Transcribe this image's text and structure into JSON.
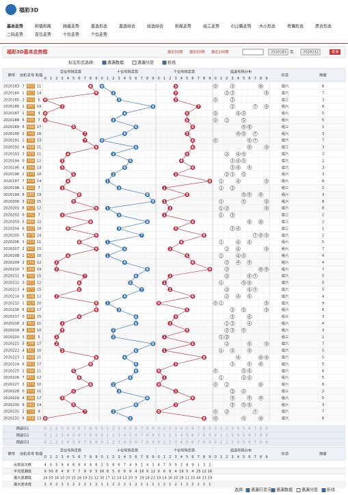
{
  "header": {
    "logo": "福彩3D",
    "nav": [
      "基本走势",
      "和值和尾",
      "跨度走势",
      "直选形态",
      "直选综合",
      "组选综合",
      "和尾走势",
      "组三走势",
      "012路走势",
      "大小形态",
      "奇偶形态",
      "质合形态",
      "二码走势",
      "百位走势",
      "十位走势",
      "个位走势"
    ]
  },
  "toolbar": {
    "title": "福彩3D基本走势图",
    "ranges": [
      "最近50期",
      "最近80期",
      "最近100期"
    ],
    "from": "2020183",
    "to_label": "至",
    "to": "2020232",
    "query": "查询",
    "mark_label": "标注形式选择:",
    "options": [
      "遗漏数据",
      "遗漏分层",
      "折线"
    ]
  },
  "table": {
    "columns": [
      "期号",
      "试机",
      "奖号",
      "和值"
    ],
    "regions": [
      "百位号码走势",
      "十位号码走势",
      "个位号码走势",
      "组选号码分布"
    ],
    "digits": [
      0,
      1,
      2,
      3,
      4,
      5,
      6,
      7,
      8,
      9
    ],
    "right_columns": [
      "形态",
      "跨度"
    ],
    "rows": [
      [
        "2020183",
        7,
        "803",
        [
          8,
          0,
          3
        ],
        11,
        "组六",
        8
      ],
      [
        "2020184",
        1,
        "923",
        [
          9,
          2,
          3
        ],
        14,
        "组六",
        7
      ],
      [
        "2020185",
        3,
        "033",
        [
          0,
          3,
          3
        ],
        6,
        "组三",
        3
      ],
      [
        "2020186",
        1,
        "397",
        [
          3,
          9,
          7
        ],
        19,
        "组六",
        6
      ],
      [
        "2020187",
        1,
        "045",
        [
          0,
          4,
          5
        ],
        9,
        "组六",
        5
      ],
      [
        "2020188",
        5,
        "025",
        [
          0,
          2,
          5
        ],
        7,
        "组六",
        5
      ],
      [
        "2020189",
        5,
        "566",
        [
          5,
          6,
          6
        ],
        17,
        "组三",
        1
      ],
      [
        "2020190",
        2,
        "745",
        [
          7,
          4,
          5
        ],
        16,
        "组六",
        3
      ],
      [
        "2020191",
        1,
        "706",
        [
          7,
          0,
          6
        ],
        13,
        "组六",
        7
      ],
      [
        "2020192",
        4,
        "966",
        [
          9,
          6,
          6
        ],
        21,
        "组三",
        3
      ],
      [
        "2020193",
        3,
        "425",
        [
          4,
          2,
          5
        ],
        11,
        "组六",
        3
      ],
      [
        "2020194",
        0,
        "354",
        [
          3,
          5,
          4
        ],
        12,
        "组六",
        2
      ],
      [
        "2020195",
        4,
        "346",
        [
          3,
          4,
          6
        ],
        13,
        "组六",
        3
      ],
      [
        "2020196",
        2,
        "523",
        [
          5,
          2,
          3
        ],
        10,
        "组六",
        3
      ],
      [
        "2020197",
        7,
        "419",
        [
          4,
          1,
          9
        ],
        14,
        "组六",
        8
      ],
      [
        "2020198",
        1,
        "331",
        [
          3,
          3,
          1
        ],
        7,
        "组三",
        2
      ],
      [
        "2020199",
        8,
        "685",
        [
          6,
          8,
          5
        ],
        19,
        "组六",
        3
      ],
      [
        "2020200",
        3,
        "591",
        [
          5,
          9,
          1
        ],
        15,
        "组六",
        8
      ],
      [
        "2020201",
        6,
        "912",
        [
          9,
          1,
          2
        ],
        12,
        "组六",
        8
      ],
      [
        "2020202",
        0,
        "331",
        [
          3,
          3,
          1
        ],
        7,
        "组三",
        2
      ],
      [
        "2020203",
        5,
        "886",
        [
          8,
          8,
          6
        ],
        22,
        "组三",
        2
      ],
      [
        "2020204",
        6,
        "433",
        [
          4,
          3,
          3
        ],
        10,
        "组三",
        1
      ],
      [
        "2020205",
        7,
        "978",
        [
          9,
          7,
          8
        ],
        24,
        "组六",
        2
      ],
      [
        "2020206",
        3,
        "614",
        [
          6,
          1,
          4
        ],
        11,
        "组六",
        5
      ],
      [
        "2020207",
        2,
        "942",
        [
          9,
          4,
          2
        ],
        15,
        "组六",
        7
      ],
      [
        "2020208",
        1,
        "415",
        [
          4,
          1,
          5
        ],
        10,
        "组六",
        4
      ],
      [
        "2020209",
        2,
        "246",
        [
          2,
          4,
          6
        ],
        12,
        "组六",
        4
      ],
      [
        "2020210",
        7,
        "289",
        [
          2,
          8,
          9
        ],
        19,
        "组六",
        7
      ],
      [
        "2020211",
        9,
        "762",
        [
          7,
          6,
          2
        ],
        15,
        "组六",
        5
      ],
      [
        "2020212",
        3,
        "651",
        [
          6,
          5,
          1
        ],
        12,
        "组六",
        5
      ],
      [
        "2020213",
        4,
        "672",
        [
          6,
          7,
          2
        ],
        15,
        "组六",
        5
      ],
      [
        "2020214",
        5,
        "246",
        [
          2,
          4,
          6
        ],
        12,
        "组六",
        4
      ],
      [
        "2020215",
        1,
        "910",
        [
          9,
          1,
          0
        ],
        10,
        "组六",
        9
      ],
      [
        "2020216",
        6,
        "935",
        [
          9,
          3,
          5
        ],
        17,
        "组六",
        6
      ],
      [
        "2020217",
        0,
        "663",
        [
          6,
          6,
          3
        ],
        15,
        "组三",
        3
      ],
      [
        "2020218",
        2,
        "362",
        [
          3,
          6,
          2
        ],
        11,
        "组六",
        4
      ],
      [
        "2020219",
        8,
        "325",
        [
          3,
          2,
          5
        ],
        10,
        "组六",
        3
      ],
      [
        "2020220",
        3,
        "221",
        [
          2,
          2,
          1
        ],
        5,
        "组三",
        1
      ],
      [
        "2020221",
        5,
        "296",
        [
          2,
          9,
          6
        ],
        17,
        "组六",
        7
      ],
      [
        "2020222",
        4,
        "361",
        [
          3,
          6,
          1
        ],
        10,
        "组六",
        5
      ],
      [
        "2020223",
        1,
        "948",
        [
          9,
          4,
          8
        ],
        21,
        "组六",
        5
      ],
      [
        "2020224",
        6,
        "863",
        [
          8,
          6,
          3
        ],
        17,
        "组六",
        5
      ],
      [
        "2020225",
        2,
        "560",
        [
          5,
          6,
          0
        ],
        11,
        "组六",
        6
      ],
      [
        "2020226",
        7,
        "651",
        [
          6,
          5,
          1
        ],
        12,
        "组六",
        5
      ],
      [
        "2020227",
        3,
        "820",
        [
          8,
          2,
          0
        ],
        10,
        "组六",
        8
      ],
      [
        "2020228",
        0,
        "533",
        [
          5,
          3,
          3
        ],
        11,
        "组三",
        2
      ],
      [
        "2020229",
        4,
        "386",
        [
          3,
          8,
          6
        ],
        17,
        "组六",
        5
      ],
      [
        "2020230",
        9,
        "563",
        [
          5,
          6,
          3
        ],
        14,
        "组六",
        3
      ],
      [
        "2020231",
        2,
        "720",
        [
          7,
          2,
          0
        ],
        9,
        "组六",
        7
      ],
      [
        "2020232",
        6,
        "058",
        [
          0,
          5,
          8
        ],
        13,
        "组六",
        8
      ]
    ],
    "preselect": [
      "预选行1",
      "预选行2",
      "预选行3"
    ],
    "stats": [
      {
        "label": "出现总次数",
        "values": [
          4,
          0,
          5,
          9,
          4,
          6,
          6,
          4,
          4,
          8,
          2,
          5,
          8,
          6,
          7,
          4,
          9,
          2,
          4,
          3,
          4,
          7,
          5,
          9,
          2,
          8,
          9,
          1,
          3,
          2
        ]
      },
      {
        "label": "平均遗漏值",
        "values": [
          9,
          50,
          8,
          4,
          9,
          7,
          7,
          9,
          9,
          5,
          16,
          8,
          5,
          6,
          6,
          9,
          4,
          16,
          9,
          12,
          9,
          6,
          8,
          4,
          16,
          5,
          4,
          25,
          12,
          16
        ]
      },
      {
        "label": "最大遗漏值",
        "values": [
          24,
          50,
          18,
          10,
          20,
          15,
          16,
          19,
          21,
          12,
          30,
          17,
          12,
          14,
          13,
          20,
          9,
          29,
          18,
          22,
          19,
          14,
          16,
          10,
          28,
          11,
          10,
          44,
          23,
          29
        ]
      },
      {
        "label": "最大连出值",
        "values": [
          2,
          0,
          2,
          3,
          1,
          2,
          2,
          2,
          1,
          2,
          1,
          1,
          2,
          2,
          2,
          1,
          2,
          1,
          1,
          1,
          1,
          2,
          1,
          2,
          1,
          2,
          2,
          1,
          1,
          1
        ]
      }
    ]
  },
  "footer": {
    "label": "选择:",
    "options": [
      "遗漏行显示",
      "遗漏数据",
      "遗漏分层",
      "折线"
    ]
  }
}
